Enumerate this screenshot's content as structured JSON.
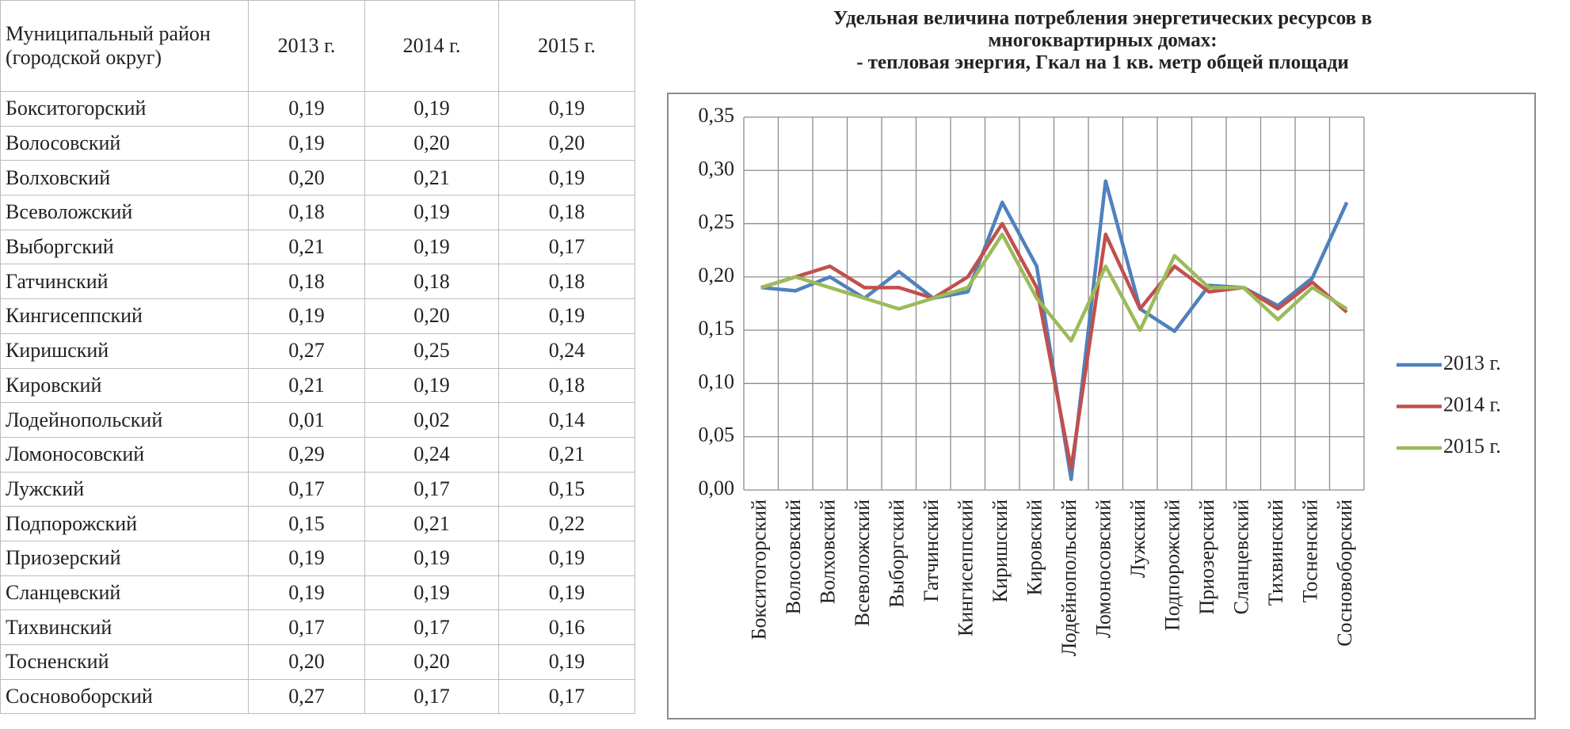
{
  "table": {
    "header": [
      "Муниципальный район (городской округ)",
      "2013 г.",
      "2014 г.",
      "2015 г."
    ],
    "rows": [
      [
        "Бокситогорский",
        "0,19",
        "0,19",
        "0,19"
      ],
      [
        "Волосовский",
        "0,19",
        "0,20",
        "0,20"
      ],
      [
        "Волховский",
        "0,20",
        "0,21",
        "0,19"
      ],
      [
        "Всеволожский",
        "0,18",
        "0,19",
        "0,18"
      ],
      [
        "Выборгский",
        "0,21",
        "0,19",
        "0,17"
      ],
      [
        "Гатчинский",
        "0,18",
        "0,18",
        "0,18"
      ],
      [
        "Кингисеппский",
        "0,19",
        "0,20",
        "0,19"
      ],
      [
        "Киришский",
        "0,27",
        "0,25",
        "0,24"
      ],
      [
        "Кировский",
        "0,21",
        "0,19",
        "0,18"
      ],
      [
        "Лодейнопольский",
        "0,01",
        "0,02",
        "0,14"
      ],
      [
        "Ломоносовский",
        "0,29",
        "0,24",
        "0,21"
      ],
      [
        "Лужский",
        "0,17",
        "0,17",
        "0,15"
      ],
      [
        "Подпорожский",
        "0,15",
        "0,21",
        "0,22"
      ],
      [
        "Приозерский",
        "0,19",
        "0,19",
        "0,19"
      ],
      [
        "Сланцевский",
        "0,19",
        "0,19",
        "0,19"
      ],
      [
        "Тихвинский",
        "0,17",
        "0,17",
        "0,16"
      ],
      [
        "Тосненский",
        "0,20",
        "0,20",
        "0,19"
      ],
      [
        "Сосновоборский",
        "0,27",
        "0,17",
        "0,17"
      ]
    ]
  },
  "chart_data": {
    "type": "line",
    "title": [
      "Удельная величина потребления энергетических ресурсов в",
      "многоквартирных домах:",
      "- тепловая энергия, Гкал на 1 кв. метр общей площади"
    ],
    "categories": [
      "Бокситогорский",
      "Волосовский",
      "Волховский",
      "Всеволожский",
      "Выборгский",
      "Гатчинский",
      "Кингисеппский",
      "Киришский",
      "Кировский",
      "Лодейнопольский",
      "Ломоносовский",
      "Лужский",
      "Подпорожский",
      "Приозерский",
      "Сланцевский",
      "Тихвинский",
      "Тосненский",
      "Сосновоборский"
    ],
    "series": [
      {
        "name": "2013 г.",
        "color": "#4f81bd",
        "values": [
          0.19,
          0.187,
          0.2,
          0.18,
          0.205,
          0.18,
          0.186,
          0.27,
          0.21,
          0.01,
          0.29,
          0.17,
          0.149,
          0.192,
          0.19,
          0.173,
          0.199,
          0.27
        ]
      },
      {
        "name": "2014 г.",
        "color": "#c0504d",
        "values": [
          0.19,
          0.2,
          0.21,
          0.19,
          0.19,
          0.18,
          0.2,
          0.25,
          0.19,
          0.02,
          0.24,
          0.17,
          0.21,
          0.186,
          0.19,
          0.17,
          0.195,
          0.167
        ]
      },
      {
        "name": "2015 г.",
        "color": "#9bbb59",
        "values": [
          0.19,
          0.2,
          0.19,
          0.18,
          0.17,
          0.18,
          0.19,
          0.24,
          0.18,
          0.14,
          0.21,
          0.15,
          0.22,
          0.19,
          0.19,
          0.16,
          0.19,
          0.17
        ]
      }
    ],
    "ylim": [
      0,
      0.35
    ],
    "yticks": [
      {
        "value": 0,
        "label": "0,00"
      },
      {
        "value": 0.05,
        "label": "0,05"
      },
      {
        "value": 0.1,
        "label": "0,10"
      },
      {
        "value": 0.15,
        "label": "0,15"
      },
      {
        "value": 0.2,
        "label": "0,20"
      },
      {
        "value": 0.25,
        "label": "0,25"
      },
      {
        "value": 0.3,
        "label": "0,30"
      },
      {
        "value": 0.35,
        "label": "0,35"
      }
    ],
    "grid": true,
    "legend": "right"
  }
}
